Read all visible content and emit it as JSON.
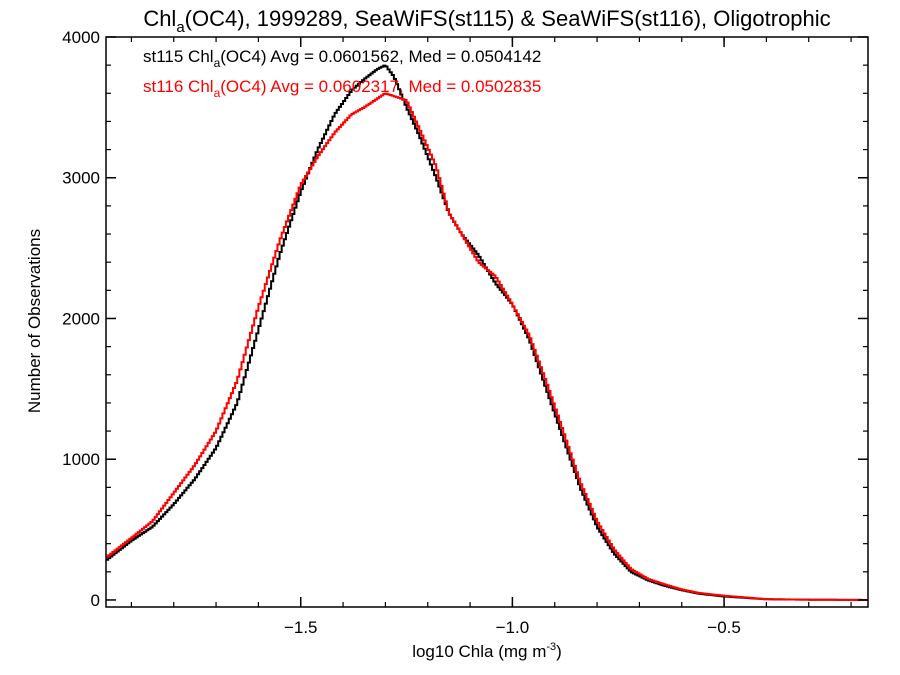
{
  "chart_data": {
    "type": "line",
    "title": {
      "pre": "Chl",
      "sub": "a",
      "post": "(OC4), 1999289, SeaWiFS(st115) & SeaWiFS(st116), Oligotrophic"
    },
    "xlabel": {
      "pre": "log10 Chla (mg m",
      "sup": "-3",
      "post": ")"
    },
    "ylabel": "Number of Observations",
    "xlim": [
      -1.96,
      -0.16
    ],
    "ylim": [
      -50,
      4000
    ],
    "x_ticks": [
      {
        "value": -1.5,
        "label": "−1.5"
      },
      {
        "value": -1.0,
        "label": "−1.0"
      },
      {
        "value": -0.5,
        "label": "−0.5"
      }
    ],
    "y_ticks": [
      {
        "value": 0,
        "label": "0"
      },
      {
        "value": 1000,
        "label": "1000"
      },
      {
        "value": 2000,
        "label": "2000"
      },
      {
        "value": 3000,
        "label": "3000"
      },
      {
        "value": 4000,
        "label": "4000"
      }
    ],
    "grid": false,
    "legend_position": "top-left",
    "series": [
      {
        "name": "st115",
        "color": "#000000",
        "legend": {
          "pre": "st115 Chl",
          "sub": "a",
          "post": "(OC4) Avg = 0.0601562, Med = 0.0504142"
        },
        "x": [
          -1.96,
          -1.9,
          -1.85,
          -1.8,
          -1.75,
          -1.7,
          -1.65,
          -1.6,
          -1.55,
          -1.5,
          -1.46,
          -1.42,
          -1.38,
          -1.35,
          -1.32,
          -1.3,
          -1.28,
          -1.25,
          -1.22,
          -1.18,
          -1.15,
          -1.12,
          -1.08,
          -1.04,
          -1.0,
          -0.96,
          -0.92,
          -0.88,
          -0.84,
          -0.8,
          -0.76,
          -0.72,
          -0.68,
          -0.64,
          -0.6,
          -0.56,
          -0.5,
          -0.45,
          -0.4,
          -0.3,
          -0.16
        ],
        "values": [
          280,
          420,
          520,
          680,
          860,
          1080,
          1400,
          1920,
          2450,
          2900,
          3200,
          3450,
          3620,
          3700,
          3770,
          3800,
          3720,
          3500,
          3300,
          3000,
          2750,
          2600,
          2450,
          2250,
          2100,
          1850,
          1500,
          1150,
          800,
          520,
          330,
          200,
          140,
          100,
          70,
          45,
          25,
          15,
          5,
          2,
          0
        ]
      },
      {
        "name": "st116",
        "color": "#ff0000",
        "legend": {
          "pre": "st116 Chl",
          "sub": "a",
          "post": "(OC4) Avg = 0.0602317, Med = 0.0502835"
        },
        "x": [
          -1.96,
          -1.9,
          -1.85,
          -1.8,
          -1.75,
          -1.7,
          -1.65,
          -1.6,
          -1.55,
          -1.5,
          -1.46,
          -1.42,
          -1.38,
          -1.35,
          -1.32,
          -1.3,
          -1.28,
          -1.25,
          -1.22,
          -1.18,
          -1.15,
          -1.12,
          -1.08,
          -1.04,
          -1.0,
          -0.96,
          -0.92,
          -0.88,
          -0.84,
          -0.8,
          -0.76,
          -0.72,
          -0.68,
          -0.64,
          -0.6,
          -0.56,
          -0.5,
          -0.45,
          -0.4,
          -0.3,
          -0.16
        ],
        "values": [
          300,
          440,
          560,
          760,
          960,
          1200,
          1560,
          2080,
          2550,
          2950,
          3150,
          3320,
          3450,
          3500,
          3560,
          3600,
          3580,
          3550,
          3350,
          3080,
          2750,
          2600,
          2400,
          2300,
          2100,
          1880,
          1550,
          1200,
          840,
          560,
          360,
          220,
          150,
          110,
          75,
          50,
          30,
          18,
          6,
          2,
          0
        ]
      }
    ]
  }
}
